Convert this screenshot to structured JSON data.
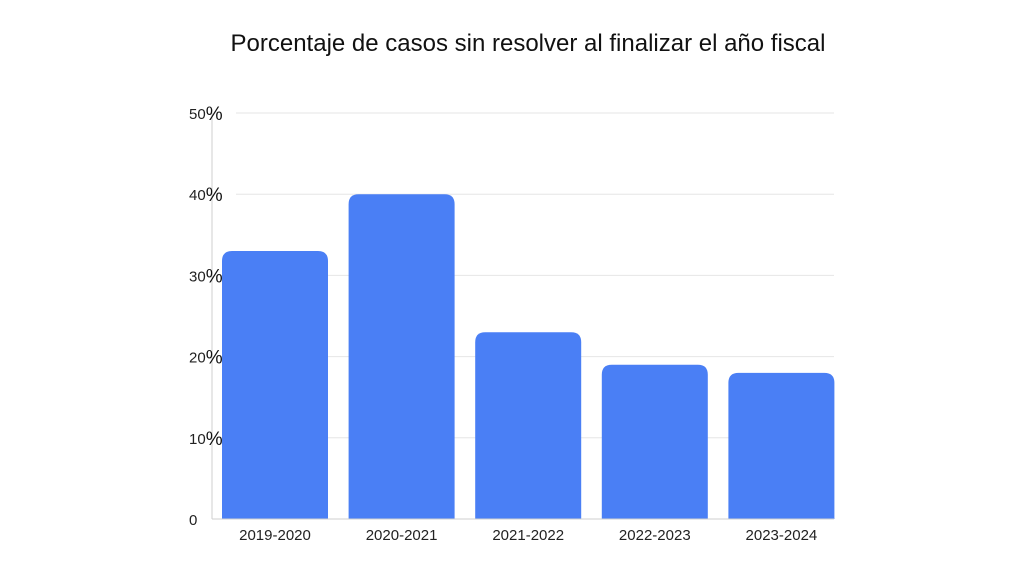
{
  "chart_data": {
    "type": "bar",
    "title": "Porcentaje de casos sin resolver al finalizar el año fiscal",
    "categories": [
      "2019-2020",
      "2020-2021",
      "2021-2022",
      "2022-2023",
      "2023-2024"
    ],
    "values": [
      33,
      40,
      23,
      19,
      18
    ],
    "xlabel": "",
    "ylabel": "",
    "ylim": [
      0,
      50
    ],
    "yticks": [
      {
        "value": 0,
        "label": "0",
        "suffix": ""
      },
      {
        "value": 10,
        "label": "10",
        "suffix": "%"
      },
      {
        "value": 20,
        "label": "20",
        "suffix": "%"
      },
      {
        "value": 30,
        "label": "30",
        "suffix": "%"
      },
      {
        "value": 40,
        "label": "40",
        "suffix": "%"
      },
      {
        "value": 50,
        "label": "50",
        "suffix": "%"
      }
    ],
    "grid": true,
    "bar_color": "#4a7ff5",
    "grid_color": "#e6e6e6",
    "axis_color": "#cfcfcf"
  }
}
